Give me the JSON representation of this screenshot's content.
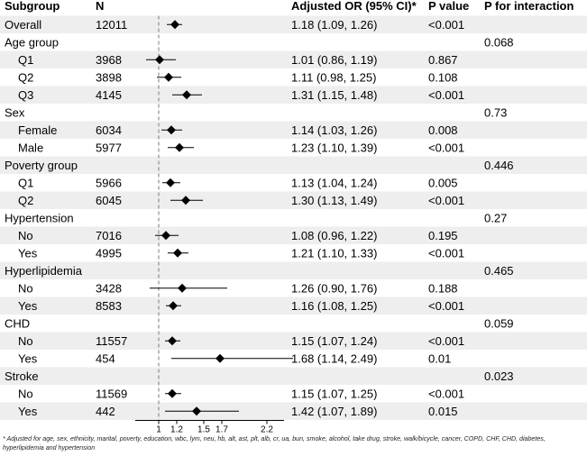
{
  "chart_data": {
    "type": "forest",
    "columns": {
      "subgroup": "Subgroup",
      "n": "N",
      "or": "Adjusted OR (95% CI)*",
      "p": "P value",
      "pint": "P for interaction"
    },
    "reference_line": 1,
    "xlim": [
      0.8,
      2.6
    ],
    "x_ticks": [
      1,
      1.2,
      1.5,
      1.7,
      2.2
    ],
    "x_tick_labels": [
      "1",
      "1.2",
      "1.5",
      "1.7",
      "2.2"
    ],
    "rows": [
      {
        "kind": "data",
        "indent": false,
        "label": "Overall",
        "n": "12011",
        "or": 1.18,
        "lo": 1.09,
        "hi": 1.26,
        "or_text": "1.18 (1.09, 1.26)",
        "p": "<0.001",
        "shaded": true
      },
      {
        "kind": "header",
        "label": "Age group",
        "pint": "0.068",
        "shaded": false
      },
      {
        "kind": "data",
        "indent": true,
        "label": "Q1",
        "n": "3968",
        "or": 1.01,
        "lo": 0.86,
        "hi": 1.19,
        "or_text": "1.01 (0.86, 1.19)",
        "p": "0.867",
        "shaded": true
      },
      {
        "kind": "data",
        "indent": true,
        "label": "Q2",
        "n": "3898",
        "or": 1.11,
        "lo": 0.98,
        "hi": 1.25,
        "or_text": "1.11 (0.98, 1.25)",
        "p": "0.108",
        "shaded": false
      },
      {
        "kind": "data",
        "indent": true,
        "label": "Q3",
        "n": "4145",
        "or": 1.31,
        "lo": 1.15,
        "hi": 1.48,
        "or_text": "1.31 (1.15, 1.48)",
        "p": "<0.001",
        "shaded": true
      },
      {
        "kind": "header",
        "label": "Sex",
        "pint": "0.73",
        "shaded": false
      },
      {
        "kind": "data",
        "indent": true,
        "label": "Female",
        "n": "6034",
        "or": 1.14,
        "lo": 1.03,
        "hi": 1.26,
        "or_text": "1.14 (1.03, 1.26)",
        "p": "0.008",
        "shaded": true
      },
      {
        "kind": "data",
        "indent": true,
        "label": "Male",
        "n": "5977",
        "or": 1.23,
        "lo": 1.1,
        "hi": 1.39,
        "or_text": "1.23 (1.10, 1.39)",
        "p": "<0.001",
        "shaded": false
      },
      {
        "kind": "header",
        "label": "Poverty group",
        "pint": "0.446",
        "shaded": true
      },
      {
        "kind": "data",
        "indent": true,
        "label": "Q1",
        "n": "5966",
        "or": 1.13,
        "lo": 1.04,
        "hi": 1.24,
        "or_text": "1.13 (1.04, 1.24)",
        "p": "0.005",
        "shaded": false
      },
      {
        "kind": "data",
        "indent": true,
        "label": "Q2",
        "n": "6045",
        "or": 1.3,
        "lo": 1.13,
        "hi": 1.49,
        "or_text": "1.30 (1.13, 1.49)",
        "p": "<0.001",
        "shaded": true
      },
      {
        "kind": "header",
        "label": "Hypertension",
        "pint": "0.27",
        "shaded": false
      },
      {
        "kind": "data",
        "indent": true,
        "label": "No",
        "n": "7016",
        "or": 1.08,
        "lo": 0.96,
        "hi": 1.22,
        "or_text": "1.08 (0.96, 1.22)",
        "p": "0.195",
        "shaded": true
      },
      {
        "kind": "data",
        "indent": true,
        "label": "Yes",
        "n": "4995",
        "or": 1.21,
        "lo": 1.1,
        "hi": 1.33,
        "or_text": "1.21 (1.10, 1.33)",
        "p": "<0.001",
        "shaded": false
      },
      {
        "kind": "header",
        "label": "Hyperlipidemia",
        "pint": "0.465",
        "shaded": true
      },
      {
        "kind": "data",
        "indent": true,
        "label": "No",
        "n": "3428",
        "or": 1.26,
        "lo": 0.9,
        "hi": 1.76,
        "or_text": "1.26 (0.90, 1.76)",
        "p": "0.188",
        "shaded": false
      },
      {
        "kind": "data",
        "indent": true,
        "label": "Yes",
        "n": "8583",
        "or": 1.16,
        "lo": 1.08,
        "hi": 1.25,
        "or_text": "1.16 (1.08, 1.25)",
        "p": "<0.001",
        "shaded": true
      },
      {
        "kind": "header",
        "label": "CHD",
        "pint": "0.059",
        "shaded": false
      },
      {
        "kind": "data",
        "indent": true,
        "label": "No",
        "n": "11557",
        "or": 1.15,
        "lo": 1.07,
        "hi": 1.24,
        "or_text": "1.15 (1.07, 1.24)",
        "p": "<0.001",
        "shaded": true
      },
      {
        "kind": "data",
        "indent": true,
        "label": "Yes",
        "n": "454",
        "or": 1.68,
        "lo": 1.14,
        "hi": 2.49,
        "or_text": "1.68 (1.14, 2.49)",
        "p": "0.01",
        "shaded": false
      },
      {
        "kind": "header",
        "label": "Stroke",
        "pint": "0.023",
        "shaded": true
      },
      {
        "kind": "data",
        "indent": true,
        "label": "No",
        "n": "11569",
        "or": 1.15,
        "lo": 1.07,
        "hi": 1.25,
        "or_text": "1.15 (1.07, 1.25)",
        "p": "<0.001",
        "shaded": false
      },
      {
        "kind": "data",
        "indent": true,
        "label": "Yes",
        "n": "442",
        "or": 1.42,
        "lo": 1.07,
        "hi": 1.89,
        "or_text": "1.42 (1.07, 1.89)",
        "p": "0.015",
        "shaded": true
      }
    ],
    "colors": {
      "shade": "#eeeeee",
      "mark": "#000000",
      "ref_line": "#7a7a7a"
    },
    "footnote": "* Adjusted for age, sex, ethnicity, marital, poverty, education, wbc, lym, neu, hb, alt, ast, plt, alb, cr, ua, bun, smoke, alcohol, take drug, stroke, walk/bicycle, cancer, COPD, CHF, CHD, diabetes, hyperlipidemia and hypertension"
  }
}
